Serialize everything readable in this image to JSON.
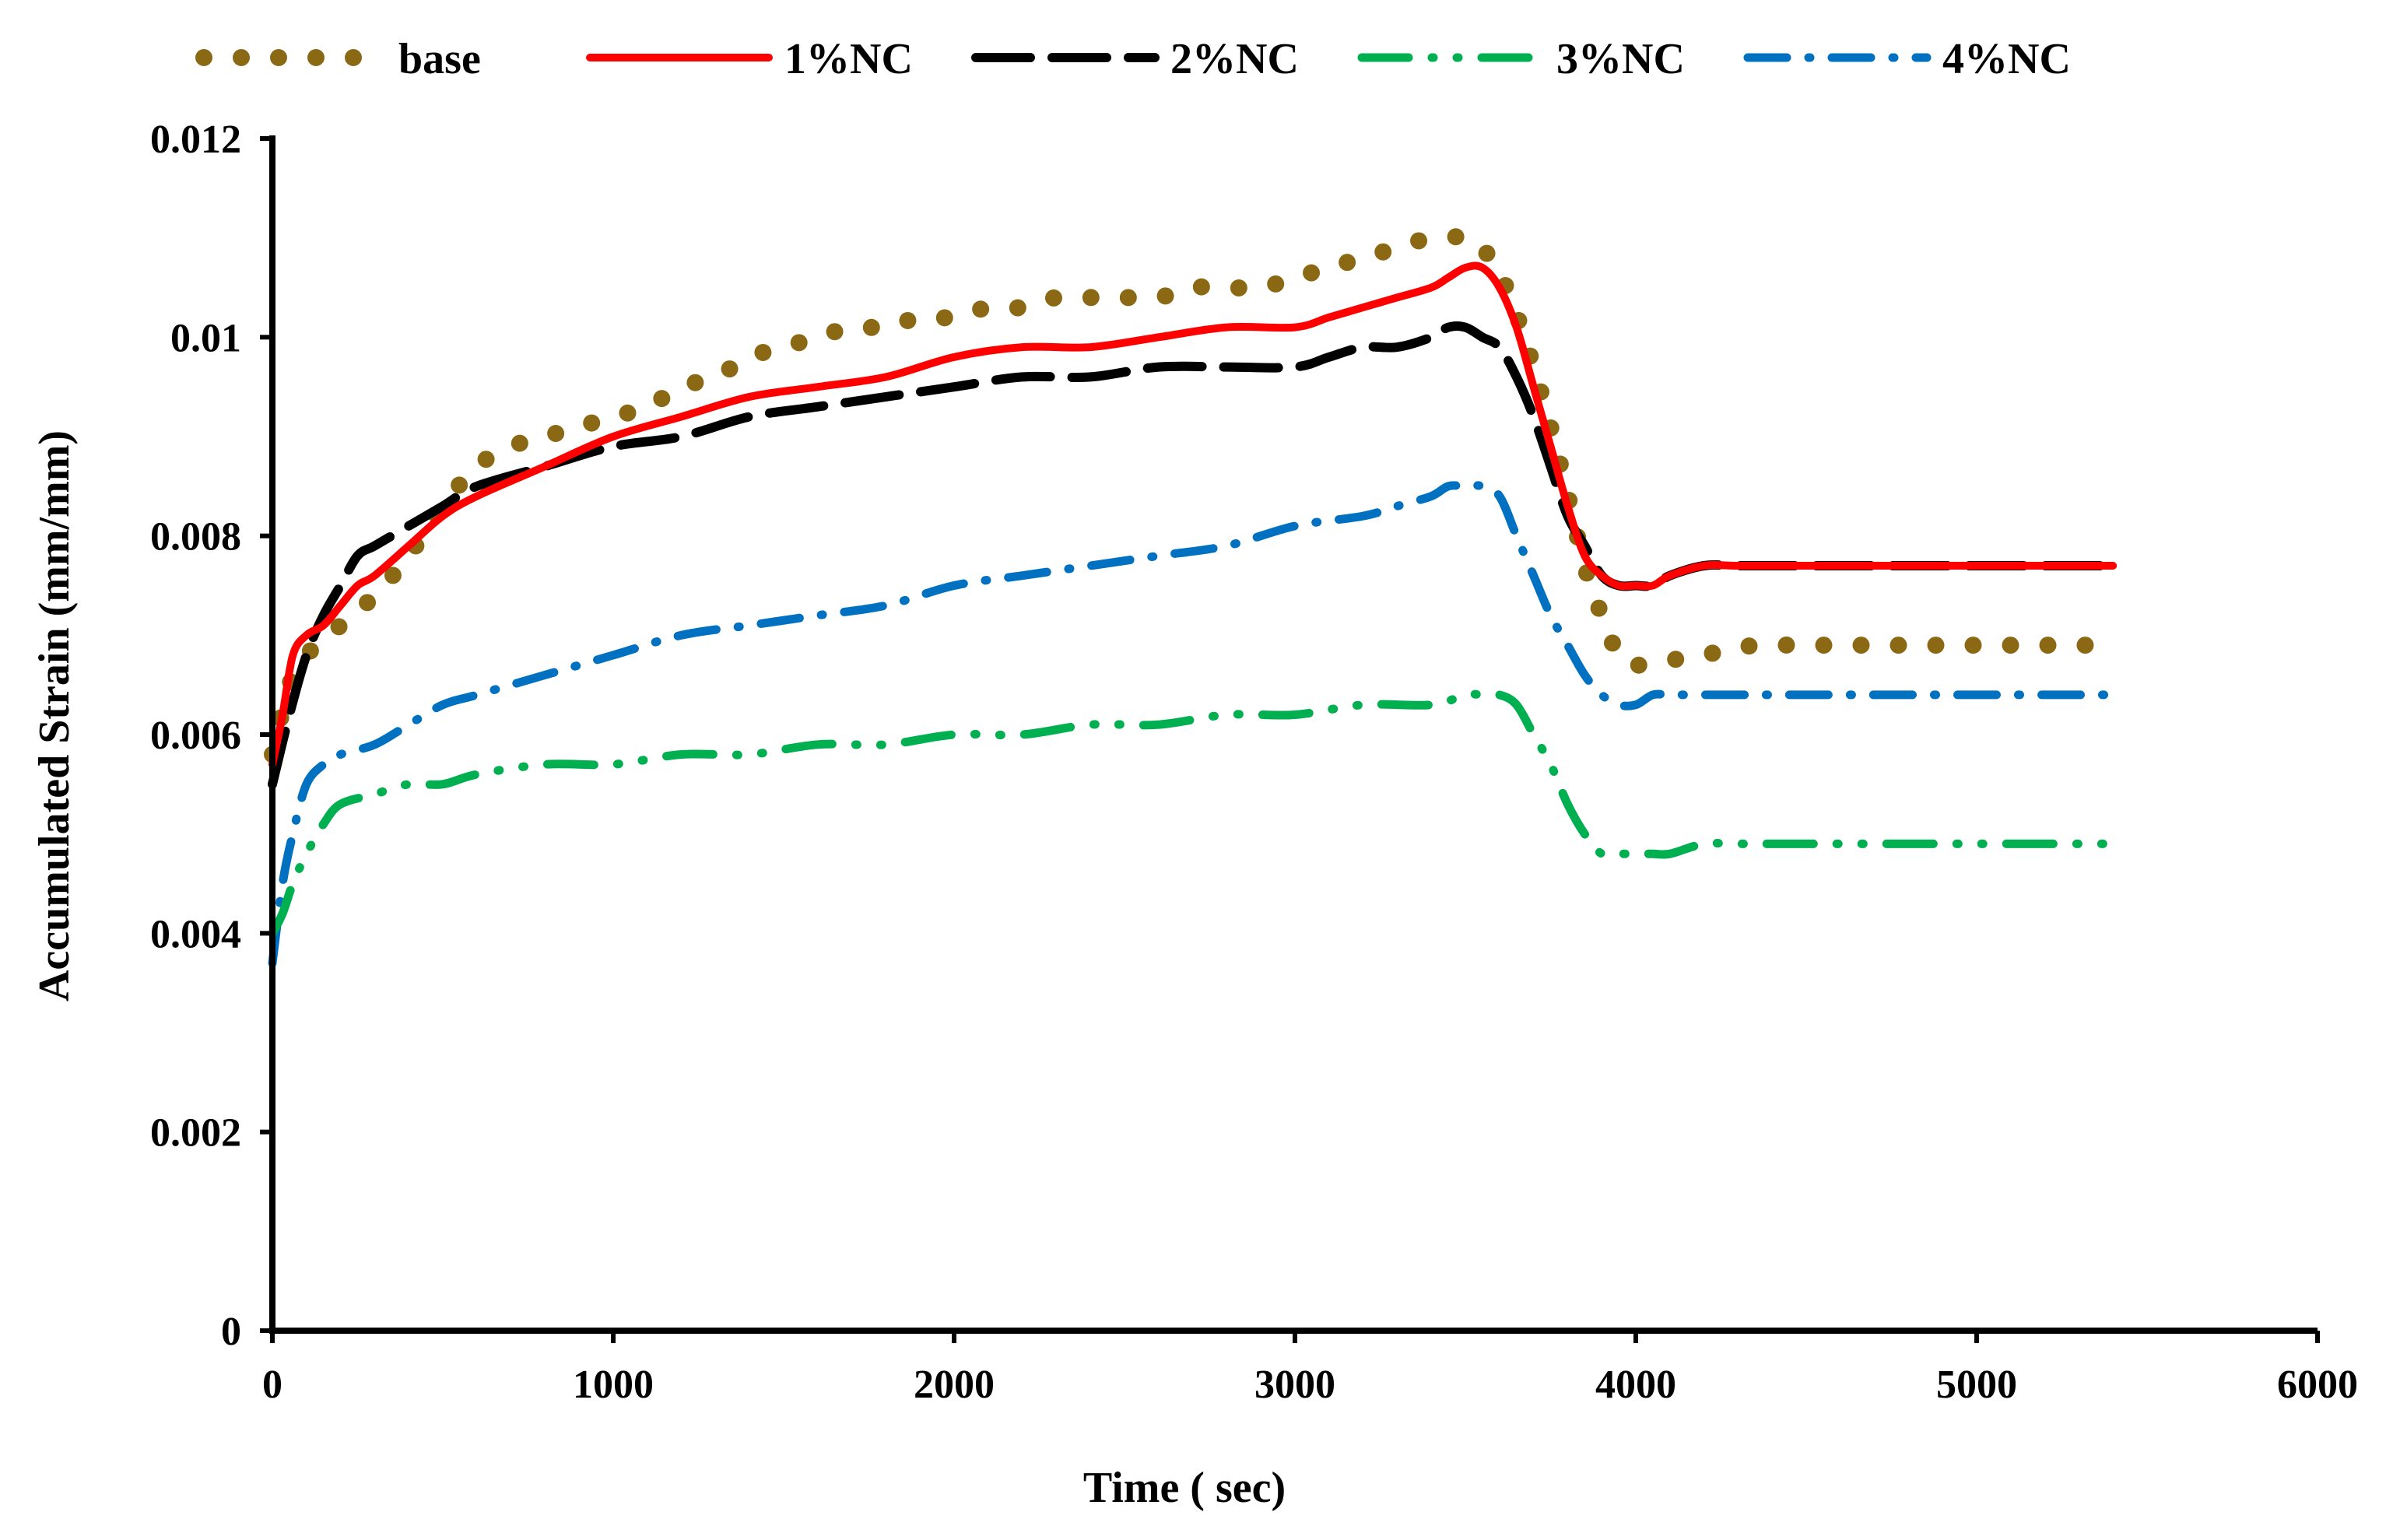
{
  "chart_data": {
    "type": "line",
    "title": "",
    "xlabel": "Time ( sec)",
    "ylabel": "Accumulated Strain (mm/mm)",
    "xlim": [
      0,
      6000
    ],
    "ylim": [
      0,
      0.012
    ],
    "xticks": [
      0,
      1000,
      2000,
      3000,
      4000,
      5000,
      6000
    ],
    "xtick_labels": [
      "0",
      "1000",
      "2000",
      "3000",
      "4000",
      "5000",
      "6000"
    ],
    "yticks": [
      0,
      0.002,
      0.004,
      0.006,
      0.008,
      0.01,
      0.012
    ],
    "ytick_labels": [
      "0",
      "0.002",
      "0.004",
      "0.006",
      "0.008",
      "0.01",
      "0.012"
    ],
    "grid": false,
    "legend_position": "top",
    "series": [
      {
        "name": "base",
        "color": "#8B6914",
        "style": "dotted",
        "x": [
          0,
          50,
          100,
          200,
          300,
          400,
          500,
          600,
          700,
          800,
          900,
          1000,
          1100,
          1200,
          1300,
          1400,
          1500,
          1600,
          1700,
          1800,
          1900,
          2000,
          2100,
          2200,
          2300,
          2400,
          2500,
          2600,
          2700,
          2800,
          2900,
          3000,
          3100,
          3200,
          3300,
          3400,
          3500,
          3550,
          3620,
          3700,
          3780,
          3850,
          3900,
          3950,
          4000,
          4100,
          4200,
          4300,
          4400,
          4500,
          4600,
          4700,
          4800,
          4900,
          5000,
          5100,
          5200,
          5300,
          5400
        ],
        "y": [
          0.0058,
          0.0065,
          0.0068,
          0.0071,
          0.0074,
          0.0078,
          0.0083,
          0.0087,
          0.0089,
          0.009,
          0.0091,
          0.0092,
          0.0093,
          0.0095,
          0.0096,
          0.0098,
          0.0099,
          0.01,
          0.0101,
          0.0101,
          0.0102,
          0.0102,
          0.0103,
          0.0103,
          0.0104,
          0.0104,
          0.0104,
          0.0104,
          0.0105,
          0.0105,
          0.0105,
          0.0106,
          0.0107,
          0.0108,
          0.0109,
          0.011,
          0.011,
          0.0109,
          0.0105,
          0.0097,
          0.0087,
          0.0077,
          0.0072,
          0.0068,
          0.0067,
          0.00675,
          0.0068,
          0.00688,
          0.0069,
          0.0069,
          0.0069,
          0.0069,
          0.0069,
          0.0069,
          0.0069,
          0.0069,
          0.0069,
          0.0069,
          0.0069
        ]
      },
      {
        "name": "1%NC",
        "color": "#FF0000",
        "style": "solid",
        "x": [
          0,
          30,
          60,
          100,
          150,
          200,
          250,
          300,
          400,
          500,
          600,
          800,
          1000,
          1200,
          1400,
          1600,
          1800,
          2000,
          2200,
          2400,
          2600,
          2800,
          3000,
          3100,
          3200,
          3300,
          3400,
          3450,
          3500,
          3550,
          3600,
          3650,
          3700,
          3750,
          3800,
          3850,
          3900,
          3950,
          4000,
          4050,
          4100,
          4200,
          4300,
          4500,
          5000,
          5400
        ],
        "y": [
          0.0057,
          0.0062,
          0.0068,
          0.007,
          0.0071,
          0.0073,
          0.0075,
          0.0076,
          0.0079,
          0.0082,
          0.0084,
          0.0087,
          0.009,
          0.0092,
          0.0094,
          0.0095,
          0.0096,
          0.0098,
          0.0099,
          0.0099,
          0.01,
          0.0101,
          0.0101,
          0.0102,
          0.0103,
          0.0104,
          0.0105,
          0.0106,
          0.0107,
          0.0107,
          0.0105,
          0.0101,
          0.0095,
          0.0089,
          0.0083,
          0.0078,
          0.0076,
          0.0075,
          0.0075,
          0.0075,
          0.0076,
          0.0077,
          0.0077,
          0.0077,
          0.0077,
          0.0077
        ]
      },
      {
        "name": "2%NC",
        "color": "#000000",
        "style": "dashed",
        "x": [
          0,
          50,
          100,
          150,
          200,
          250,
          300,
          400,
          500,
          600,
          800,
          1000,
          1200,
          1400,
          1600,
          1800,
          2000,
          2200,
          2400,
          2600,
          2800,
          3000,
          3100,
          3200,
          3300,
          3400,
          3450,
          3500,
          3550,
          3600,
          3650,
          3700,
          3750,
          3800,
          3850,
          3900,
          3950,
          4000,
          4050,
          4100,
          4200,
          4300,
          4500,
          5000,
          5400
        ],
        "y": [
          0.0055,
          0.0062,
          0.0068,
          0.0072,
          0.0075,
          0.0078,
          0.0079,
          0.0081,
          0.0083,
          0.0085,
          0.0087,
          0.0089,
          0.009,
          0.0092,
          0.0093,
          0.0094,
          0.0095,
          0.0096,
          0.0096,
          0.0097,
          0.0097,
          0.0097,
          0.0098,
          0.0099,
          0.0099,
          0.01,
          0.0101,
          0.0101,
          0.01,
          0.0099,
          0.0096,
          0.0092,
          0.0087,
          0.0082,
          0.0079,
          0.0076,
          0.0075,
          0.0075,
          0.0075,
          0.0076,
          0.0077,
          0.0077,
          0.0077,
          0.0077,
          0.0077
        ]
      },
      {
        "name": "3%NC",
        "color": "#00B050",
        "style": "dash-dot-dot",
        "x": [
          0,
          30,
          60,
          100,
          150,
          200,
          300,
          400,
          500,
          600,
          800,
          1000,
          1200,
          1400,
          1600,
          1800,
          2000,
          2200,
          2400,
          2600,
          2800,
          3000,
          3200,
          3400,
          3500,
          3550,
          3600,
          3650,
          3700,
          3750,
          3800,
          3850,
          3900,
          3950,
          4000,
          4050,
          4100,
          4200,
          4300,
          4500,
          5000,
          5400
        ],
        "y": [
          0.004,
          0.0042,
          0.0045,
          0.0048,
          0.0051,
          0.0053,
          0.0054,
          0.0055,
          0.0055,
          0.0056,
          0.0057,
          0.0057,
          0.0058,
          0.0058,
          0.0059,
          0.0059,
          0.006,
          0.006,
          0.0061,
          0.0061,
          0.0062,
          0.0062,
          0.0063,
          0.0063,
          0.0064,
          0.0064,
          0.0064,
          0.0063,
          0.006,
          0.0057,
          0.0053,
          0.005,
          0.0048,
          0.0048,
          0.0048,
          0.0048,
          0.0048,
          0.0049,
          0.0049,
          0.0049,
          0.0049,
          0.0049
        ]
      },
      {
        "name": "4%NC",
        "color": "#0070C0",
        "style": "dash-dot",
        "x": [
          0,
          30,
          60,
          100,
          150,
          200,
          300,
          400,
          500,
          600,
          800,
          1000,
          1200,
          1400,
          1600,
          1800,
          2000,
          2200,
          2400,
          2600,
          2800,
          3000,
          3200,
          3300,
          3400,
          3450,
          3500,
          3550,
          3600,
          3650,
          3700,
          3750,
          3800,
          3850,
          3900,
          3950,
          4000,
          4050,
          4100,
          4200,
          4300,
          4500,
          5000,
          5400
        ],
        "y": [
          0.0037,
          0.0045,
          0.005,
          0.0055,
          0.0057,
          0.0058,
          0.0059,
          0.0061,
          0.0063,
          0.0064,
          0.0066,
          0.0068,
          0.007,
          0.0071,
          0.0072,
          0.0073,
          0.0075,
          0.0076,
          0.0077,
          0.0078,
          0.0079,
          0.0081,
          0.0082,
          0.0083,
          0.0084,
          0.0085,
          0.0085,
          0.0085,
          0.0084,
          0.008,
          0.0076,
          0.0072,
          0.0069,
          0.0066,
          0.0064,
          0.0063,
          0.0063,
          0.0064,
          0.0064,
          0.0064,
          0.0064,
          0.0064,
          0.0064,
          0.0064
        ]
      }
    ]
  }
}
